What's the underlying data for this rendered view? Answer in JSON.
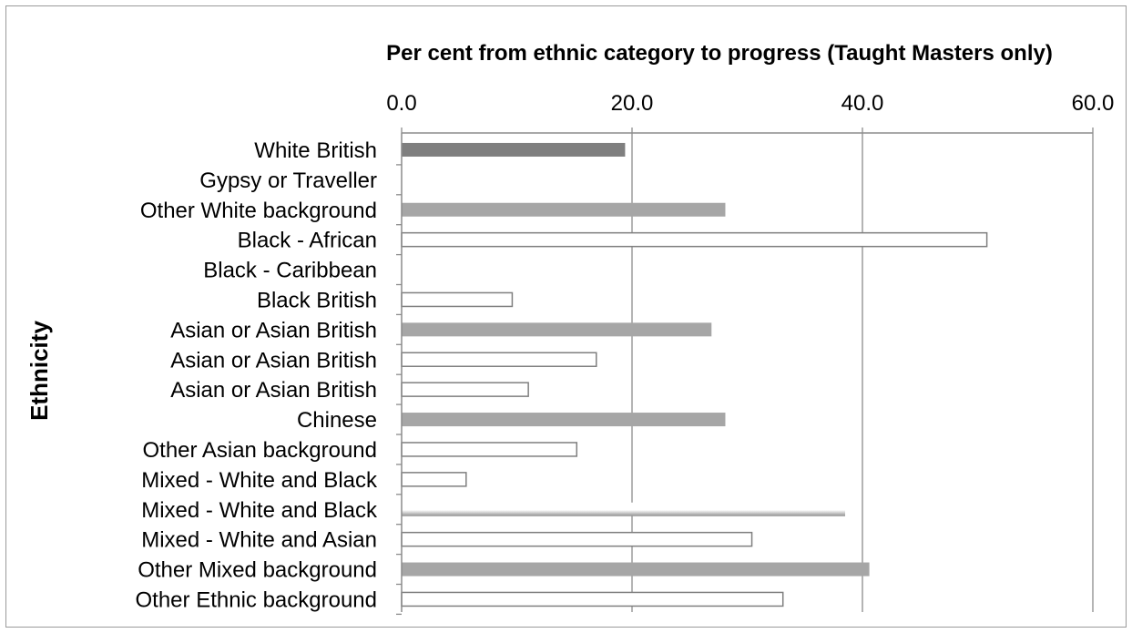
{
  "chart_data": {
    "type": "bar",
    "orientation": "horizontal",
    "title": "Per cent from ethnic category to progress (Taught Masters only)",
    "xlabel": "",
    "ylabel": "Ethnicity",
    "xlim": [
      0,
      60
    ],
    "xticks": [
      "0.0",
      "20.0",
      "40.0",
      "60.0"
    ],
    "x_axis_position": "top",
    "grid": true,
    "legend": "none",
    "categories": [
      "White British",
      "Gypsy or Traveller",
      "Other White background",
      "Black - African",
      "Black - Caribbean",
      "Black British",
      "Asian or Asian British",
      "Asian or Asian British",
      "Asian or Asian British",
      "Chinese",
      "Other Asian background",
      "Mixed - White and Black",
      "Mixed - White and Black",
      "Mixed - White and Asian",
      "Other Mixed background",
      "Other Ethnic background"
    ],
    "values": [
      19.4,
      0,
      28.1,
      50.8,
      0,
      9.6,
      26.9,
      16.9,
      11.0,
      28.1,
      15.2,
      5.6,
      38.5,
      30.4,
      40.6,
      33.1
    ],
    "bar_styles": [
      "dark",
      "none",
      "gray",
      "outline",
      "none",
      "outline",
      "gray",
      "outline",
      "outline",
      "gray",
      "outline",
      "outline",
      "shaded",
      "outline",
      "gray",
      "outline"
    ],
    "colors": {
      "dark": "#7f7f7f",
      "gray": "#a6a6a6",
      "outline_fill": "#ffffff",
      "outline_stroke": "#7f7f7f",
      "grid": "#8c8c8c",
      "axis": "#8c8c8c"
    }
  }
}
